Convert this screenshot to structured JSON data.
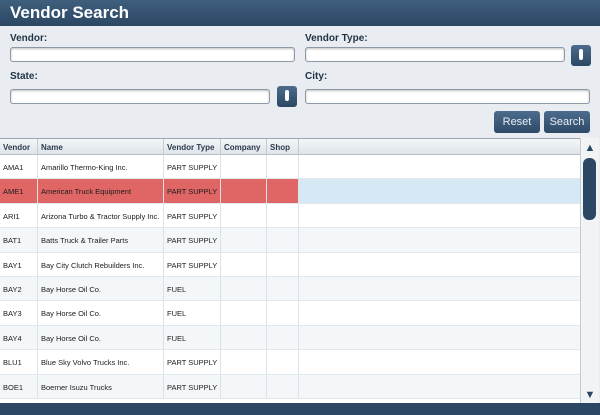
{
  "header": {
    "title": "Vendor Search"
  },
  "form": {
    "vendor_label": "Vendor:",
    "vendor_type_label": "Vendor Type:",
    "state_label": "State:",
    "city_label": "City:",
    "reset_button": "Reset",
    "search_button": "Search"
  },
  "table": {
    "columns": [
      "Vendor",
      "Name",
      "Vendor Type",
      "Company",
      "Shop"
    ],
    "rows": [
      {
        "cells": [
          "AMA1",
          "Amarillo Thermo-King Inc.",
          "PART SUPPLY"
        ]
      },
      {
        "cells": [
          "AME1",
          "American Truck Equipment",
          "PART SUPPLY"
        ],
        "selected": true
      },
      {
        "cells": [
          "ARI1",
          "Arizona Turbo & Tractor Supply Inc.",
          "PART SUPPLY"
        ]
      },
      {
        "cells": [
          "BAT1",
          "Batts Truck & Trailer Parts",
          "PART SUPPLY"
        ]
      },
      {
        "cells": [
          "BAY1",
          "Bay City Clutch Rebuilders Inc.",
          "PART SUPPLY"
        ]
      },
      {
        "cells": [
          "BAY2",
          "Bay Horse Oil Co.",
          "FUEL"
        ]
      },
      {
        "cells": [
          "BAY3",
          "Bay Horse Oil Co.",
          "FUEL"
        ]
      },
      {
        "cells": [
          "BAY4",
          "Bay Horse Oil Co.",
          "FUEL"
        ]
      },
      {
        "cells": [
          "BLU1",
          "Blue Sky Volvo Trucks Inc.",
          "PART SUPPLY"
        ]
      },
      {
        "cells": [
          "BOE1",
          "Boerner Isuzu Trucks",
          "PART SUPPLY"
        ]
      }
    ]
  }
}
